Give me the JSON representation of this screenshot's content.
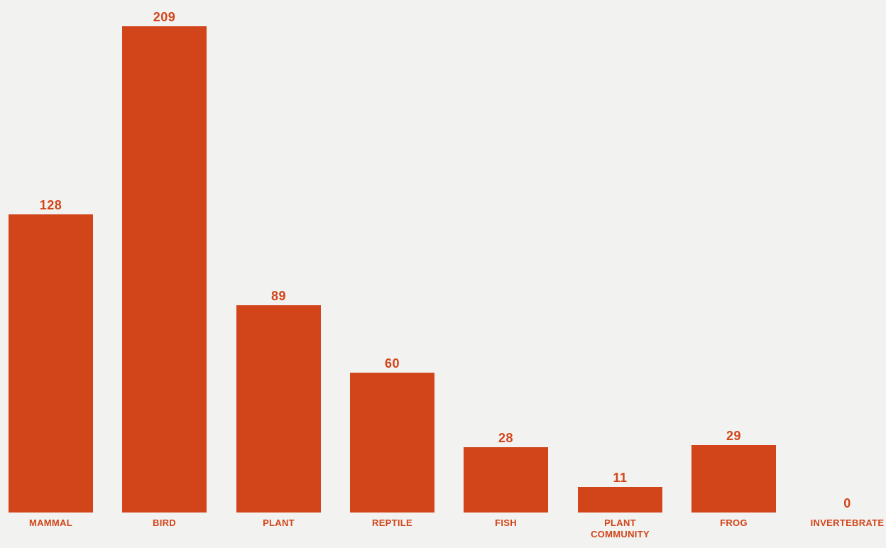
{
  "colors": {
    "background": "#f2f2f0",
    "bar": "#d2451a",
    "value_label": "#d2451a",
    "category_label": "#d2451a"
  },
  "chart_data": {
    "type": "bar",
    "categories": [
      "MAMMAL",
      "BIRD",
      "PLANT",
      "REPTILE",
      "FISH",
      "PLANT COMMUNITY",
      "FROG",
      "INVERTEBRATE"
    ],
    "values": [
      128,
      209,
      89,
      60,
      28,
      11,
      29,
      0
    ],
    "title": "",
    "xlabel": "",
    "ylabel": "",
    "ylim": [
      0,
      209
    ],
    "orientation": "vertical",
    "grid": false,
    "legend": false,
    "axes_shown": false,
    "value_labels_position": "above-bar",
    "category_labels_position": "below-baseline"
  }
}
